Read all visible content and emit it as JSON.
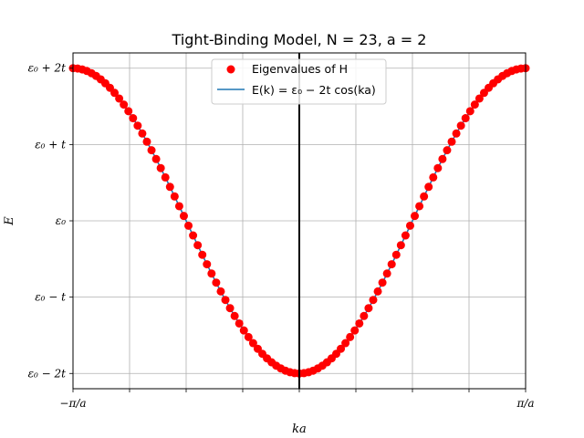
{
  "chart_data": {
    "type": "scatter",
    "title": "Tight-Binding Model, N = 23, a = 2",
    "xlabel": "ka",
    "ylabel": "E",
    "xlim": [
      -3.14159265,
      3.14159265
    ],
    "ylim": [
      -2.2,
      2.2
    ],
    "x_ticks": [
      {
        "value": -3.14159265,
        "label": "−π/a"
      },
      {
        "value": -2.35619449,
        "label": ""
      },
      {
        "value": -1.57079633,
        "label": ""
      },
      {
        "value": -0.78539816,
        "label": ""
      },
      {
        "value": 0,
        "label": ""
      },
      {
        "value": 0.78539816,
        "label": ""
      },
      {
        "value": 1.57079633,
        "label": ""
      },
      {
        "value": 2.35619449,
        "label": ""
      },
      {
        "value": 3.14159265,
        "label": "π/a"
      }
    ],
    "y_ticks": [
      {
        "value": 2,
        "label": "ε₀ + 2t"
      },
      {
        "value": 1,
        "label": "ε₀ + t"
      },
      {
        "value": 0,
        "label": "ε₀"
      },
      {
        "value": -1,
        "label": "ε₀ − t"
      },
      {
        "value": -2,
        "label": "ε₀ − 2t"
      }
    ],
    "grid": true,
    "vertical_line_x": 0,
    "legend": {
      "placement": "upper center"
    },
    "series": [
      {
        "name": "Eigenvalues of H",
        "kind": "points",
        "color": "#ff0000",
        "marker": "circle",
        "x_from": -3.14159265,
        "x_to": 3.14159265,
        "count": 99,
        "formula": "E = ε₀ − 2t·cos(ka)"
      },
      {
        "name": "E(k) = ε₀ − 2t cos(ka)",
        "kind": "line",
        "color": "#1f77b4",
        "formula": "E = ε₀ − 2t·cos(ka)"
      }
    ]
  }
}
